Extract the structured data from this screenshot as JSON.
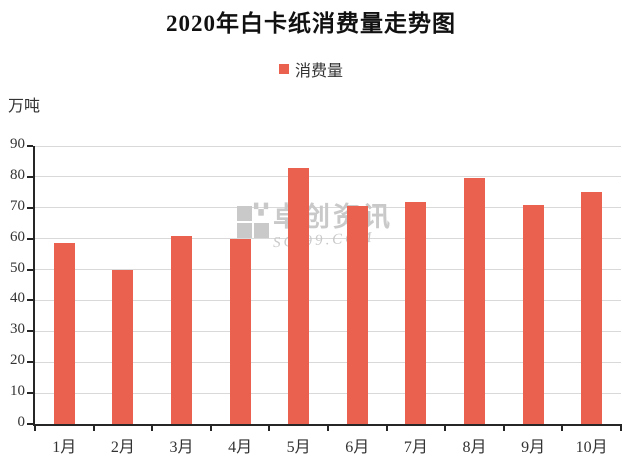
{
  "chart_data": {
    "type": "bar",
    "title": "2020年白卡纸消费量走势图",
    "unit_label": "万吨",
    "categories": [
      "1月",
      "2月",
      "3月",
      "4月",
      "5月",
      "6月",
      "7月",
      "8月",
      "9月",
      "10月"
    ],
    "series": [
      {
        "name": "消费量",
        "color": "#eb6150",
        "values": [
          58.5,
          50,
          61,
          60,
          83,
          70.5,
          72,
          79.5,
          71,
          75
        ]
      }
    ],
    "xlabel": "",
    "ylabel": "万吨",
    "ylim": [
      0,
      90
    ],
    "ytick_step": 10,
    "grid": true,
    "legend_position": "top-center",
    "axis_color": "#262626",
    "gridline_color": "#d9d9d9",
    "label_color": "#333333",
    "title_color": "#111111"
  },
  "watermark": {
    "line1": "卓创资讯",
    "line2": "SCI99.COM",
    "color": "#c9c9c9"
  }
}
